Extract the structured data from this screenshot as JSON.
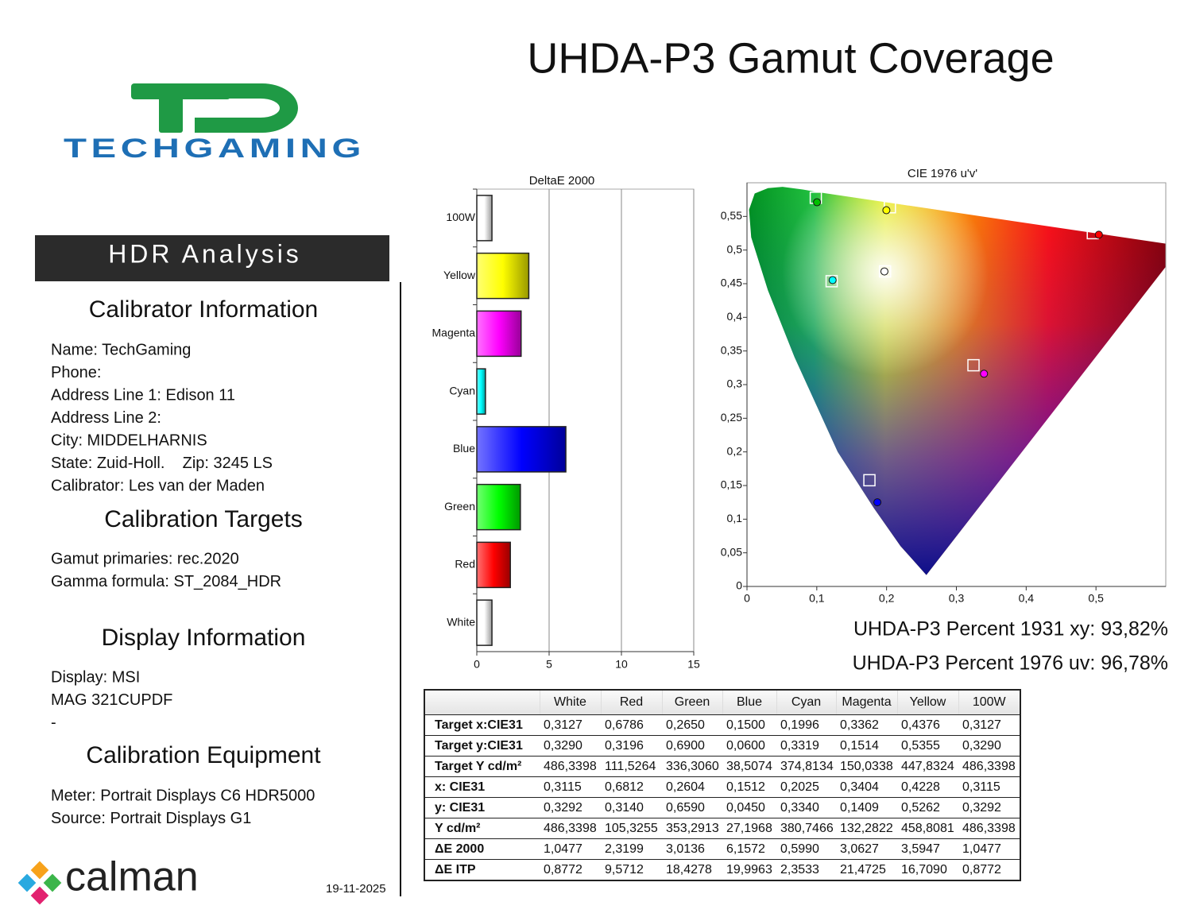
{
  "header": {
    "title": "UHDA-P3 Gamut Coverage"
  },
  "logo": {
    "brand": "TECHGAMING"
  },
  "sidebar": {
    "banner": "HDR Analysis",
    "sections": [
      {
        "heading": "Calibrator Information",
        "lines": [
          "Name: TechGaming",
          "Phone:",
          "Address Line 1: Edison 11",
          "Address Line 2:",
          "City: MIDDELHARNIS",
          "State: Zuid-Holl.    Zip: 3245 LS",
          "Calibrator: Les van der Maden"
        ]
      },
      {
        "heading": "Calibration Targets",
        "lines": [
          "Gamut primaries: rec.2020",
          "Gamma formula: ST_2084_HDR"
        ]
      },
      {
        "heading": "Display Information",
        "lines": [
          "Display: MSI",
          "MAG 321CUPDF",
          "-"
        ]
      },
      {
        "heading": "Calibration Equipment",
        "lines": [
          "Meter: Portrait Displays C6 HDR5000",
          "Source: Portrait Displays G1"
        ]
      }
    ]
  },
  "footer": {
    "software": "calman",
    "date": "19-11-2025"
  },
  "summary": [
    "UHDA-P3 Percent 1931 xy: 93,82%",
    "UHDA-P3 Percent 1976 uv: 96,78%"
  ],
  "chart_data": [
    {
      "type": "bar",
      "orientation": "horizontal",
      "title": "DeltaE 2000",
      "categories": [
        "100W",
        "Yellow",
        "Magenta",
        "Cyan",
        "Blue",
        "Green",
        "Red",
        "White"
      ],
      "values": [
        1.0477,
        3.5947,
        3.0627,
        0.599,
        6.1572,
        3.0136,
        2.3199,
        1.0477
      ],
      "colors": [
        "#ffffff",
        "#ffff00",
        "#ff00ff",
        "#00ffff",
        "#0000ff",
        "#00ff00",
        "#ff0000",
        "#ffffff"
      ],
      "xlim": [
        0,
        15
      ],
      "xticks": [
        0,
        5,
        10,
        15
      ],
      "grid": true
    },
    {
      "type": "scatter",
      "title": "CIE 1976 u'v'",
      "xlim": [
        0,
        0.6
      ],
      "ylim": [
        0,
        0.6
      ],
      "xticks": [
        0,
        {
          "value": 0.1,
          "label": "0,1"
        },
        {
          "value": 0.2,
          "label": "0,2"
        },
        {
          "value": 0.3,
          "label": "0,3"
        },
        {
          "value": 0.4,
          "label": "0,4"
        },
        {
          "value": 0.5,
          "label": "0,5"
        }
      ],
      "yticks": [
        0,
        {
          "value": 0.05,
          "label": "0,05"
        },
        {
          "value": 0.1,
          "label": "0,1"
        },
        {
          "value": 0.15,
          "label": "0,15"
        },
        {
          "value": 0.2,
          "label": "0,2"
        },
        {
          "value": 0.25,
          "label": "0,25"
        },
        {
          "value": 0.3,
          "label": "0,3"
        },
        {
          "value": 0.35,
          "label": "0,35"
        },
        {
          "value": 0.4,
          "label": "0,4"
        },
        {
          "value": 0.45,
          "label": "0,45"
        },
        {
          "value": 0.5,
          "label": "0,5"
        },
        {
          "value": 0.55,
          "label": "0,55"
        }
      ],
      "series": [
        {
          "marker": "square",
          "color": "#ffffff",
          "x": [
            0.1978,
            0.4955,
            0.0986,
            0.1754,
            0.1213,
            0.3245,
            0.2047
          ],
          "values": [
            0.4683,
            0.5251,
            0.5777,
            0.1579,
            0.4537,
            0.3288,
            0.5636
          ]
        },
        {
          "marker": "circle",
          "colors": [
            "#ffffff",
            "#ff0000",
            "#00c000",
            "#0000ff",
            "#00ffff",
            "#ff00ff",
            "#ffff00"
          ],
          "x": [
            0.1969,
            0.5041,
            0.1003,
            0.1868,
            0.1227,
            0.3396,
            0.1997
          ],
          "values": [
            0.4682,
            0.5228,
            0.571,
            0.1251,
            0.4553,
            0.3162,
            0.5592
          ]
        }
      ]
    }
  ],
  "table": {
    "columns": [
      "White",
      "Red",
      "Green",
      "Blue",
      "Cyan",
      "Magenta",
      "Yellow",
      "100W"
    ],
    "rows": [
      {
        "label": "Target x:CIE31",
        "cells": [
          "0,3127",
          "0,6786",
          "0,2650",
          "0,1500",
          "0,1996",
          "0,3362",
          "0,4376",
          "0,3127"
        ]
      },
      {
        "label": "Target y:CIE31",
        "cells": [
          "0,3290",
          "0,3196",
          "0,6900",
          "0,0600",
          "0,3319",
          "0,1514",
          "0,5355",
          "0,3290"
        ]
      },
      {
        "label": "Target Y cd/m²",
        "cells": [
          "486,3398",
          "111,5264",
          "336,3060",
          "38,5074",
          "374,8134",
          "150,0338",
          "447,8324",
          "486,3398"
        ]
      },
      {
        "label": "x: CIE31",
        "cells": [
          "0,3115",
          "0,6812",
          "0,2604",
          "0,1512",
          "0,2025",
          "0,3404",
          "0,4228",
          "0,3115"
        ]
      },
      {
        "label": "y: CIE31",
        "cells": [
          "0,3292",
          "0,3140",
          "0,6590",
          "0,0450",
          "0,3340",
          "0,1409",
          "0,5262",
          "0,3292"
        ]
      },
      {
        "label": "Y cd/m²",
        "cells": [
          "486,3398",
          "105,3255",
          "353,2913",
          "27,1968",
          "380,7466",
          "132,2822",
          "458,8081",
          "486,3398"
        ]
      },
      {
        "label": "ΔE 2000",
        "cells": [
          "1,0477",
          "2,3199",
          "3,0136",
          "6,1572",
          "0,5990",
          "3,0627",
          "3,5947",
          "1,0477"
        ]
      },
      {
        "label": "ΔE ITP",
        "cells": [
          "0,8772",
          "9,5712",
          "18,4278",
          "19,9963",
          "2,3533",
          "21,4725",
          "16,7090",
          "0,8772"
        ]
      }
    ]
  }
}
